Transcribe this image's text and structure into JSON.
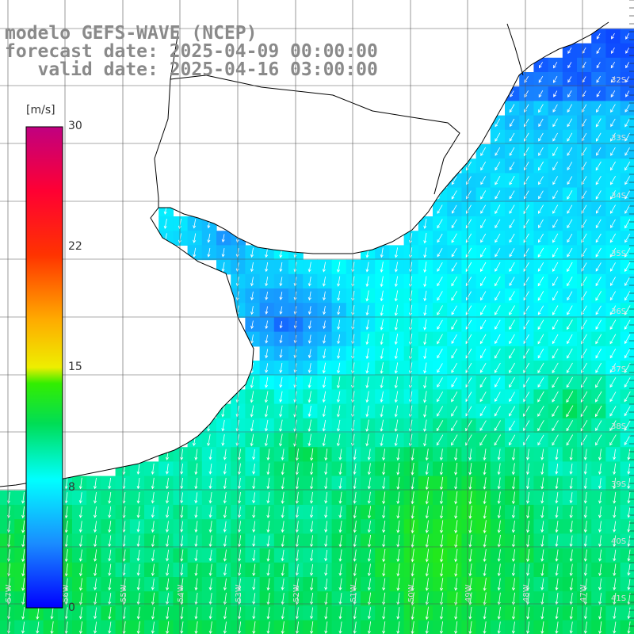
{
  "title": {
    "line1": "modelo GEFS-WAVE (NCEP)",
    "line2": "forecast date: 2025-04-09 00:00:00",
    "line3": "   valid date: 2025-04-16 03:00:00"
  },
  "colorbar": {
    "unit": "[m/s]",
    "ticks": [
      "30",
      "22",
      "15",
      "8",
      "0"
    ],
    "tick_values": [
      30,
      22,
      15,
      8,
      0
    ],
    "range": [
      0,
      30
    ],
    "stops": [
      {
        "v": 0,
        "color": "#0000ff"
      },
      {
        "v": 4,
        "color": "#1a8cff"
      },
      {
        "v": 8,
        "color": "#00ffff"
      },
      {
        "v": 11.5,
        "color": "#00dd55"
      },
      {
        "v": 14,
        "color": "#33ee00"
      },
      {
        "v": 15,
        "color": "#eeee00"
      },
      {
        "v": 18,
        "color": "#ffaa00"
      },
      {
        "v": 22,
        "color": "#ff3300"
      },
      {
        "v": 26,
        "color": "#ff0033"
      },
      {
        "v": 30,
        "color": "#c00080"
      }
    ]
  },
  "lat_labels": [
    "32S",
    "33S",
    "34S",
    "35S",
    "36S",
    "37S",
    "38S",
    "39S",
    "40S",
    "41S"
  ],
  "lon_labels": [
    "57W",
    "56W",
    "55W",
    "54W",
    "53W",
    "52W",
    "51W",
    "50W",
    "49W",
    "48W",
    "47W"
  ],
  "colors": {
    "land": "#ffffff",
    "grid": "#555555",
    "coast": "#000000",
    "arrows": "#ffffff",
    "title": "#8a8a8a"
  },
  "field": {
    "description_unit": "m/s",
    "wind_direction": "from north-northeast toward south-southwest"
  }
}
